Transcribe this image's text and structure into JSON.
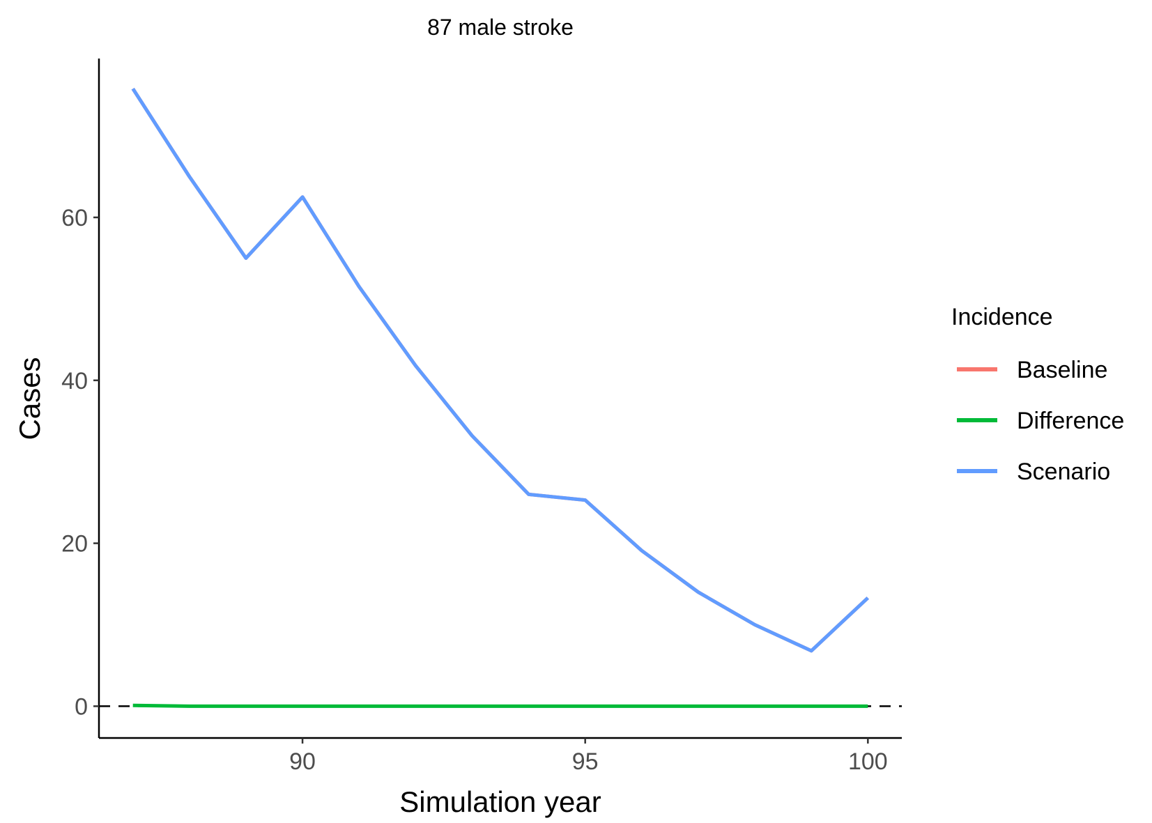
{
  "chart_data": {
    "type": "line",
    "title": "87 male stroke",
    "xlabel": "Simulation year",
    "ylabel": "Cases",
    "xlim": [
      86.4,
      100.6
    ],
    "ylim": [
      -3.9,
      79.5
    ],
    "x_ticks": [
      90,
      95,
      100
    ],
    "y_ticks": [
      0,
      20,
      40,
      60
    ],
    "grid": false,
    "reference_line": {
      "y": 0,
      "style": "dashed",
      "color": "#000000"
    },
    "legend": {
      "title": "Incidence",
      "position": "right",
      "entries": [
        {
          "name": "Baseline",
          "color": "#F8766D"
        },
        {
          "name": "Difference",
          "color": "#00BA38"
        },
        {
          "name": "Scenario",
          "color": "#619CFF"
        }
      ]
    },
    "x": [
      87,
      88,
      89,
      90,
      91,
      92,
      93,
      94,
      95,
      96,
      97,
      98,
      99,
      100
    ],
    "series": [
      {
        "name": "Baseline",
        "color": "#F8766D",
        "values": [
          75.8,
          65.0,
          55.0,
          62.5,
          51.5,
          41.8,
          33.2,
          26.0,
          25.3,
          19.1,
          14.0,
          10.0,
          6.8,
          13.3
        ]
      },
      {
        "name": "Difference",
        "color": "#00BA38",
        "values": [
          0.1,
          0.0,
          0.0,
          0.0,
          0.0,
          0.0,
          0.0,
          0.0,
          0.0,
          0.0,
          0.0,
          0.0,
          0.0,
          0.0
        ]
      },
      {
        "name": "Scenario",
        "color": "#619CFF",
        "values": [
          75.8,
          65.0,
          55.0,
          62.5,
          51.5,
          41.8,
          33.2,
          26.0,
          25.3,
          19.1,
          14.0,
          10.0,
          6.8,
          13.3
        ]
      }
    ]
  }
}
